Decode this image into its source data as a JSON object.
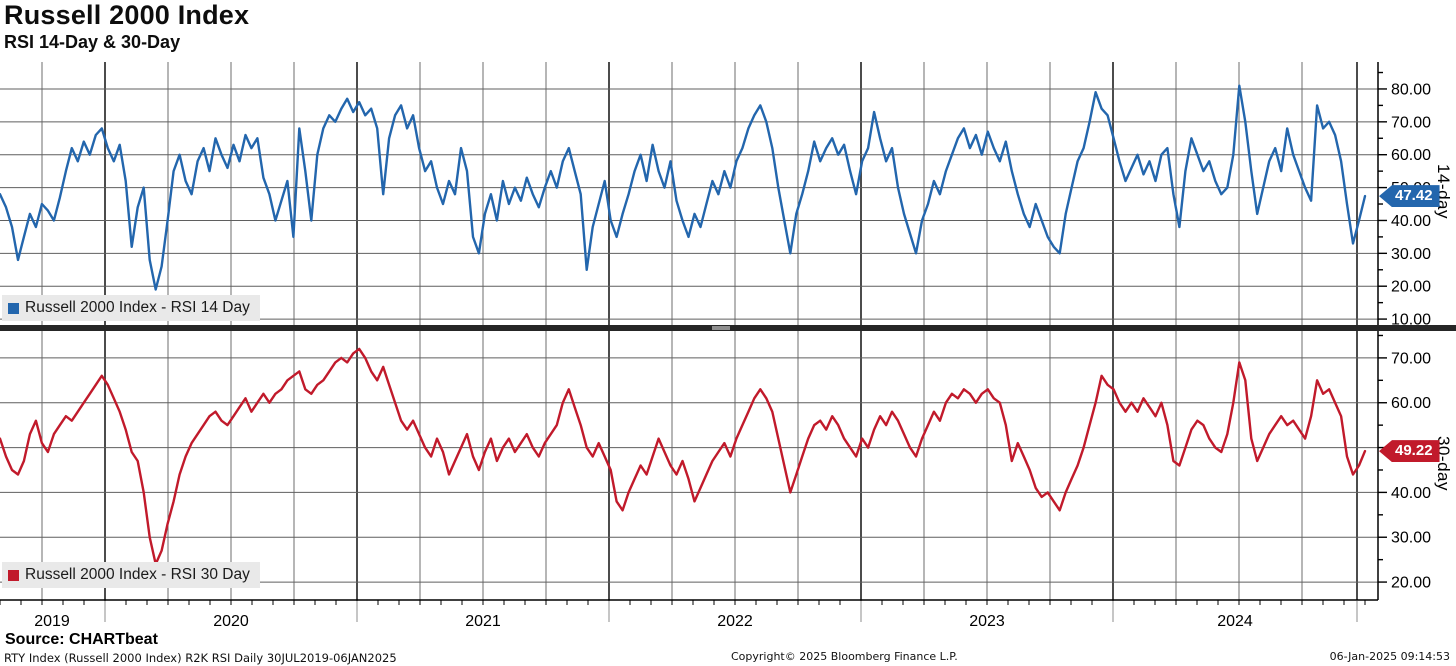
{
  "header": {
    "title": "Russell 2000 Index",
    "subtitle": "RSI 14-Day & 30-Day"
  },
  "colors": {
    "rsi14_line": "#2366ad",
    "rsi30_line": "#c11a2b",
    "grid_horizontal": "#5f5f5f",
    "grid_vertical": "#6e6e6e",
    "grid_year": "#383838",
    "axis": "#000000",
    "separator": "#262626",
    "legend_bg": "#e9e9e9",
    "year_tick_gray": "#b8b8b8"
  },
  "x_axis": {
    "year_labels": [
      "2019",
      "2020",
      "2021",
      "2022",
      "2023",
      "2024"
    ]
  },
  "footer": {
    "source": "Source: CHARTbeat",
    "meta": "RTY Index (Russell 2000 Index) R2K RSI  Daily 30JUL2019-06JAN2025",
    "copyright": "Copyright© 2025 Bloomberg Finance L.P.",
    "timestamp": "06-Jan-2025 09:14:53"
  },
  "chart_data": [
    {
      "type": "line",
      "panel": "top",
      "legend": "Russell 2000 Index - RSI 14 Day",
      "series_name": "RSI 14 Day",
      "axis_title": "14-day",
      "color": "#2366ad",
      "last_value": 47.42,
      "last_value_label": "47.42",
      "ylim": [
        8.2,
        88.2
      ],
      "yticks": [
        10,
        20,
        30,
        40,
        50,
        60,
        70,
        80
      ],
      "ytick_labels": [
        "10.00",
        "20.00",
        "30.00",
        "40.00",
        "50.00",
        "60.00",
        "70.00",
        "80.00"
      ],
      "x_range": [
        "30JUL2019",
        "06JAN2025"
      ],
      "values": [
        48,
        44,
        38,
        28,
        35,
        42,
        38,
        45,
        43,
        40,
        47,
        55,
        62,
        58,
        64,
        60,
        66,
        68,
        62,
        58,
        63,
        52,
        32,
        44,
        50,
        28,
        19,
        26,
        40,
        55,
        60,
        52,
        48,
        58,
        62,
        55,
        65,
        60,
        56,
        63,
        58,
        66,
        62,
        65,
        53,
        48,
        40,
        46,
        52,
        35,
        68,
        55,
        40,
        60,
        68,
        72,
        70,
        74,
        77,
        73,
        76,
        72,
        74,
        68,
        48,
        65,
        72,
        75,
        68,
        72,
        62,
        55,
        58,
        50,
        45,
        52,
        48,
        62,
        55,
        35,
        30,
        42,
        48,
        40,
        52,
        45,
        50,
        46,
        53,
        48,
        44,
        50,
        55,
        50,
        58,
        62,
        55,
        48,
        25,
        38,
        45,
        52,
        40,
        35,
        42,
        48,
        55,
        60,
        52,
        63,
        55,
        50,
        58,
        46,
        40,
        35,
        42,
        38,
        45,
        52,
        48,
        55,
        50,
        58,
        62,
        68,
        72,
        75,
        70,
        62,
        50,
        40,
        30,
        42,
        48,
        55,
        64,
        58,
        62,
        65,
        60,
        63,
        55,
        48,
        58,
        62,
        73,
        65,
        58,
        62,
        50,
        42,
        36,
        30,
        40,
        45,
        52,
        48,
        55,
        60,
        65,
        68,
        62,
        66,
        60,
        67,
        62,
        58,
        64,
        55,
        48,
        42,
        38,
        45,
        40,
        35,
        32,
        30,
        42,
        50,
        58,
        62,
        70,
        79,
        74,
        72,
        65,
        58,
        52,
        56,
        60,
        54,
        58,
        52,
        60,
        62,
        48,
        38,
        55,
        65,
        60,
        55,
        58,
        52,
        48,
        50,
        60,
        81,
        70,
        55,
        42,
        50,
        58,
        62,
        55,
        68,
        60,
        55,
        50,
        46,
        75,
        68,
        70,
        66,
        58,
        45,
        33,
        40,
        47.42
      ]
    },
    {
      "type": "line",
      "panel": "bottom",
      "legend": "Russell 2000 Index - RSI 30 Day",
      "series_name": "RSI 30 Day",
      "axis_title": "30-day",
      "color": "#c11a2b",
      "last_value": 49.22,
      "last_value_label": "49.22",
      "ylim": [
        16,
        76
      ],
      "yticks": [
        20,
        30,
        40,
        50,
        60,
        70
      ],
      "ytick_labels": [
        "20.00",
        "30.00",
        "40.00",
        "50.00",
        "60.00",
        "70.00"
      ],
      "x_range": [
        "30JUL2019",
        "06JAN2025"
      ],
      "values": [
        52,
        48,
        45,
        44,
        47,
        53,
        56,
        51,
        49,
        53,
        55,
        57,
        56,
        58,
        60,
        62,
        64,
        66,
        64,
        61,
        58,
        54,
        49,
        47,
        40,
        30,
        24,
        27,
        33,
        38,
        44,
        48,
        51,
        53,
        55,
        57,
        58,
        56,
        55,
        57,
        59,
        61,
        58,
        60,
        62,
        60,
        62,
        63,
        65,
        66,
        67,
        63,
        62,
        64,
        65,
        67,
        69,
        70,
        69,
        71,
        72,
        70,
        67,
        65,
        68,
        64,
        60,
        56,
        54,
        56,
        53,
        50,
        48,
        52,
        49,
        44,
        47,
        50,
        53,
        48,
        45,
        49,
        52,
        47,
        50,
        52,
        49,
        51,
        53,
        50,
        48,
        51,
        53,
        55,
        60,
        63,
        59,
        55,
        50,
        48,
        51,
        48,
        45,
        38,
        36,
        40,
        43,
        46,
        44,
        48,
        52,
        49,
        46,
        44,
        47,
        43,
        38,
        41,
        44,
        47,
        49,
        51,
        48,
        52,
        55,
        58,
        61,
        63,
        61,
        58,
        52,
        46,
        40,
        44,
        48,
        52,
        55,
        56,
        54,
        57,
        55,
        52,
        50,
        48,
        52,
        50,
        54,
        57,
        55,
        58,
        56,
        53,
        50,
        48,
        52,
        55,
        58,
        56,
        60,
        62,
        61,
        63,
        62,
        60,
        62,
        63,
        61,
        60,
        55,
        47,
        51,
        48,
        45,
        41,
        39,
        40,
        38,
        36,
        40,
        43,
        46,
        50,
        55,
        60,
        66,
        64,
        63,
        60,
        58,
        60,
        58,
        61,
        59,
        57,
        60,
        55,
        47,
        46,
        50,
        54,
        56,
        55,
        52,
        50,
        49,
        53,
        60,
        69,
        65,
        52,
        47,
        50,
        53,
        55,
        57,
        55,
        56,
        54,
        52,
        57,
        65,
        62,
        63,
        60,
        57,
        48,
        44,
        46,
        49.22
      ]
    }
  ]
}
